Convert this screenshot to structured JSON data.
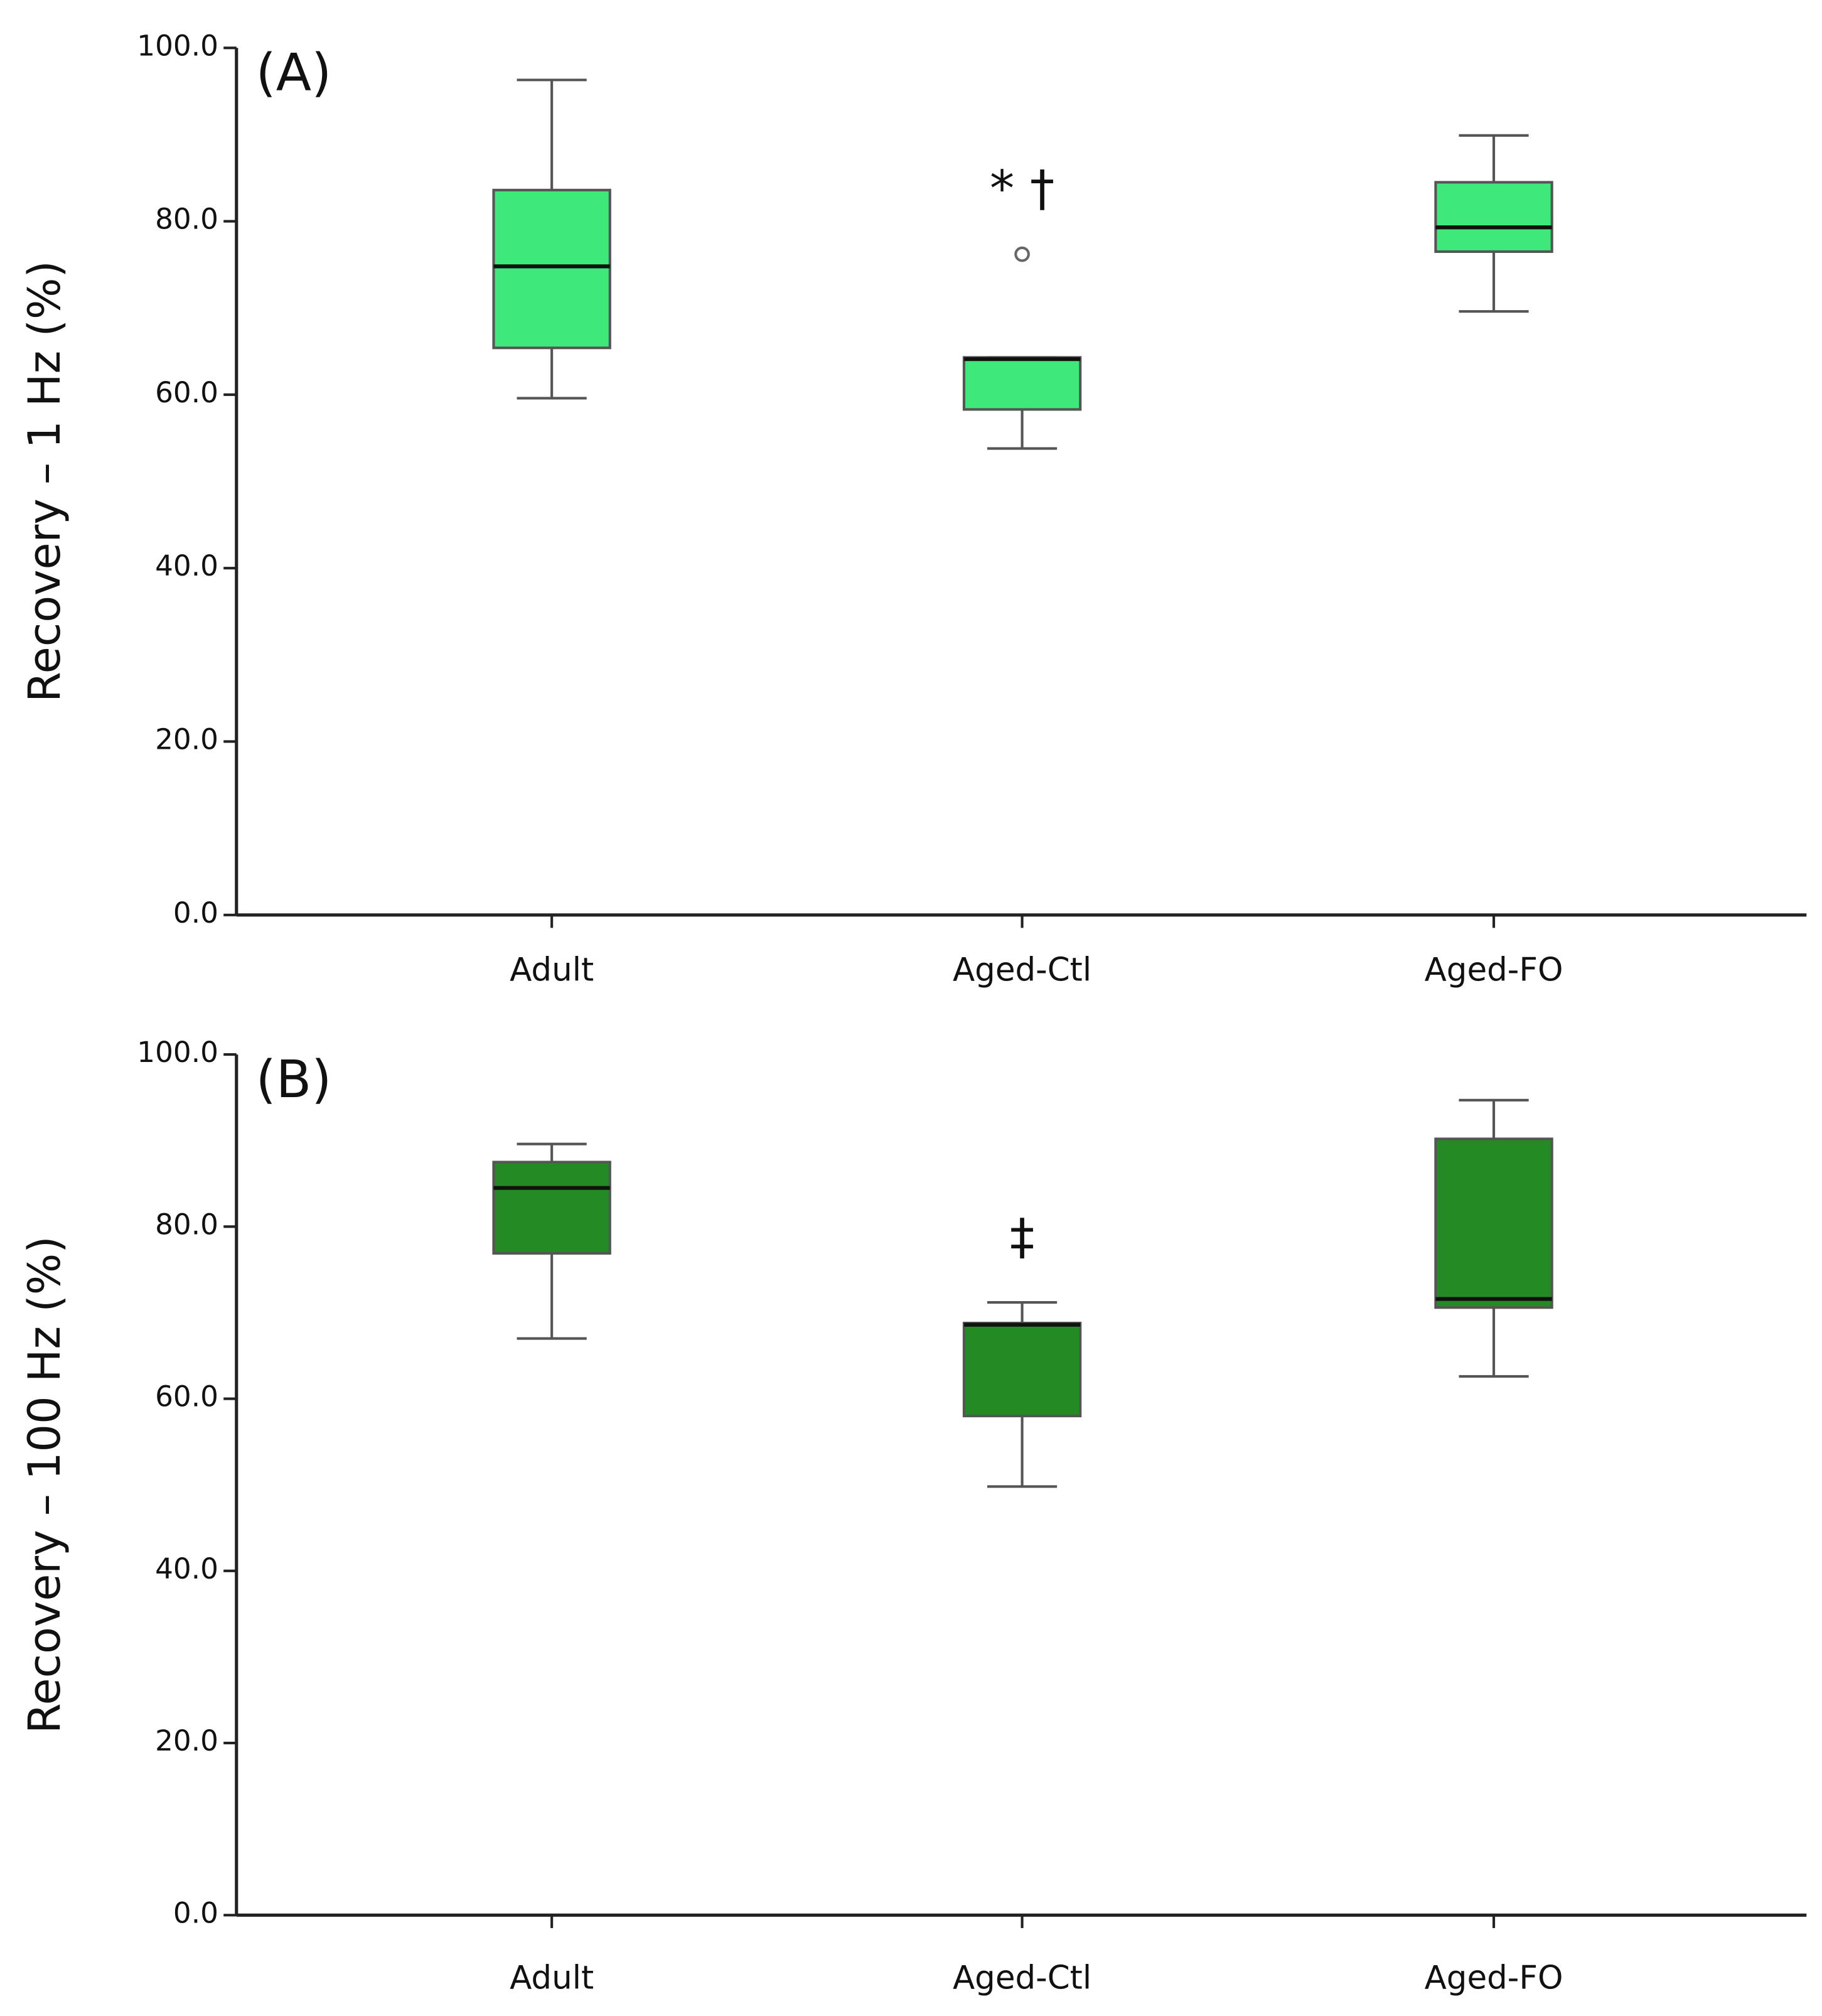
{
  "chart_data": [
    {
      "type": "box",
      "panel_label": "(A)",
      "ylabel": "Recovery – 1 Hz (%)",
      "color": "#3fe87a",
      "categories": [
        "Adult",
        "Aged-Ctl",
        "Aged-FO"
      ],
      "boxes": [
        {
          "whisker_low": 59.6,
          "q1": 65.4,
          "median": 74.8,
          "q3": 83.6,
          "whisker_high": 96.3,
          "outliers": []
        },
        {
          "whisker_low": 53.8,
          "q1": 58.3,
          "median": 64.1,
          "q3": 64.3,
          "whisker_high": 64.3,
          "outliers": [
            76.2
          ],
          "annotation": "* †"
        },
        {
          "whisker_low": 69.6,
          "q1": 76.5,
          "median": 79.3,
          "q3": 84.5,
          "whisker_high": 89.9,
          "outliers": []
        }
      ],
      "ylim": [
        0,
        100
      ],
      "yticks": [
        {
          "value": 0,
          "label": "0.0"
        },
        {
          "value": 20,
          "label": "20.0"
        },
        {
          "value": 40,
          "label": "40.0"
        },
        {
          "value": 60,
          "label": "60.0"
        },
        {
          "value": 80,
          "label": "80.0"
        },
        {
          "value": 100,
          "label": "100.0"
        }
      ]
    },
    {
      "type": "box",
      "panel_label": "(B)",
      "ylabel": "Recovery – 100 Hz (%)",
      "color": "#248a24",
      "categories": [
        "Adult",
        "Aged-Ctl",
        "Aged-FO"
      ],
      "boxes": [
        {
          "whisker_low": 67.0,
          "q1": 76.9,
          "median": 84.5,
          "q3": 87.5,
          "whisker_high": 89.6,
          "outliers": []
        },
        {
          "whisker_low": 49.8,
          "q1": 58.0,
          "median": 68.6,
          "q3": 68.8,
          "whisker_high": 71.2,
          "outliers": [],
          "annotation": "‡"
        },
        {
          "whisker_low": 62.6,
          "q1": 70.6,
          "median": 71.6,
          "q3": 90.2,
          "whisker_high": 94.7,
          "outliers": []
        }
      ],
      "ylim": [
        0,
        100
      ],
      "yticks": [
        {
          "value": 0,
          "label": "0.0"
        },
        {
          "value": 20,
          "label": "20.0"
        },
        {
          "value": 40,
          "label": "40.0"
        },
        {
          "value": 60,
          "label": "60.0"
        },
        {
          "value": 80,
          "label": "80.0"
        },
        {
          "value": 100,
          "label": "100.0"
        }
      ]
    }
  ]
}
